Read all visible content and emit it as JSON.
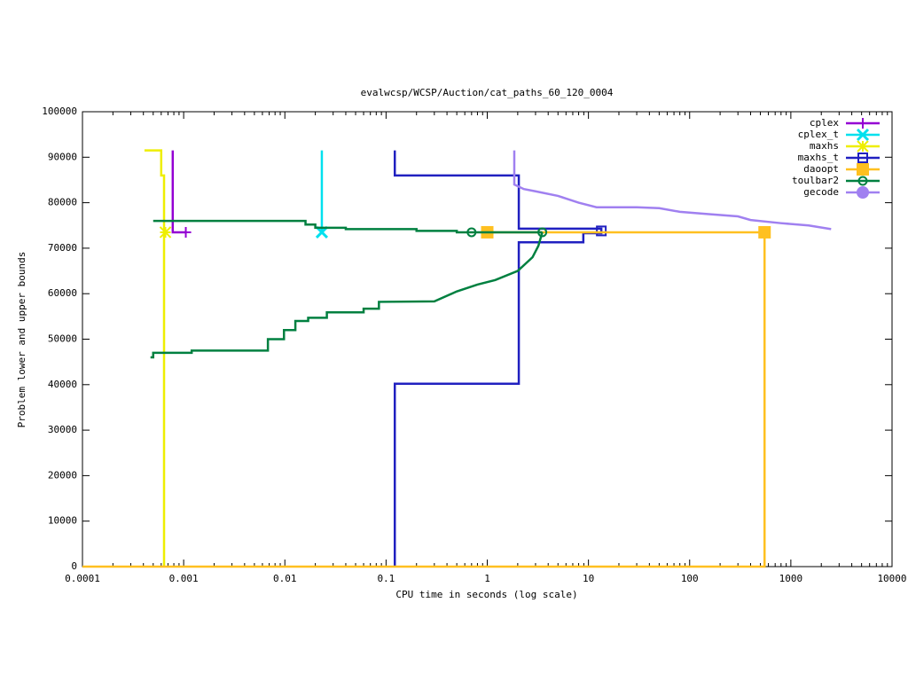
{
  "chart_data": {
    "type": "line",
    "title": "evalwcsp/WCSP/Auction/cat_paths_60_120_0004",
    "x_label": "CPU time in seconds (log scale)",
    "y_label": "Problem lower and upper bounds",
    "xscale": "log",
    "xlim": [
      0.0001,
      10000
    ],
    "xticks": [
      0.0001,
      0.001,
      0.01,
      0.1,
      1,
      10,
      100,
      1000,
      10000
    ],
    "ylim": [
      0,
      100000
    ],
    "yticks": [
      0,
      10000,
      20000,
      30000,
      40000,
      50000,
      60000,
      70000,
      80000,
      90000,
      100000
    ],
    "legend": "top-right",
    "series": [
      {
        "name": "cplex",
        "color": "#9400d3",
        "marker": "plus",
        "x": [
          0.00078,
          0.00078,
          0.00105
        ],
        "values": [
          91500,
          73500,
          73500
        ],
        "marker_x": [
          0.00105
        ],
        "marker_y": [
          73500
        ]
      },
      {
        "name": "cplex_t",
        "color": "#00e0ee",
        "marker": "cross",
        "x": [
          0.0232,
          0.0232
        ],
        "values": [
          91500,
          73500
        ],
        "marker_x": [
          0.0232
        ],
        "marker_y": [
          73500
        ]
      },
      {
        "name": "maxhs",
        "color": "#eeee00",
        "marker": "star",
        "x": [
          0.00041,
          0.0006,
          0.0006,
          0.00064,
          0.00064
        ],
        "values": [
          91500,
          91500,
          86000,
          86000,
          0
        ],
        "marker_x": [
          0.00066
        ],
        "marker_y": [
          73500
        ]
      },
      {
        "name": "maxhs_t",
        "color": "#2020c0",
        "marker": "square-open",
        "x": [
          0.122,
          0.122,
          2.05,
          2.05,
          8.9,
          8.9,
          13.4,
          13.4,
          null,
          0.122,
          0.122,
          2.05,
          2.05,
          13.4,
          13.4
        ],
        "values": [
          0,
          40200,
          40200,
          71300,
          71300,
          73300,
          73300,
          74500,
          null,
          91500,
          86000,
          86000,
          74300,
          74300,
          73500
        ],
        "marker_x": [
          13.4
        ],
        "marker_y": [
          73800
        ]
      },
      {
        "name": "daoopt",
        "color": "#ffc020",
        "marker": "square",
        "x": [
          1,
          550,
          550,
          0.0001
        ],
        "values": [
          73500,
          73500,
          0,
          0
        ],
        "marker_x": [
          1,
          550
        ],
        "marker_y": [
          73500,
          73500
        ]
      },
      {
        "name": "toulbar2",
        "color": "#008040",
        "marker": "circle-open",
        "x": [
          0.0005,
          0.016,
          0.016,
          0.02,
          0.02,
          0.04,
          0.04,
          0.2,
          0.2,
          0.5,
          0.5,
          0.7,
          3.5,
          null,
          0.00047,
          0.00047,
          0.0005,
          0.0005,
          0.0012,
          0.0012,
          0.0068,
          0.0068,
          0.0098,
          0.0098,
          0.0127,
          0.0127,
          0.017,
          0.017,
          0.026,
          0.026,
          0.06,
          0.06,
          0.085,
          0.085,
          0.3,
          0.5,
          0.8,
          1.2,
          2,
          2.8,
          3.2,
          3.5
        ],
        "values": [
          76000,
          76000,
          75200,
          75200,
          74500,
          74500,
          74200,
          74200,
          73800,
          73800,
          73500,
          73500,
          73500,
          null,
          46000,
          46000,
          46000,
          47000,
          47000,
          47500,
          47500,
          50000,
          50000,
          52000,
          52000,
          54000,
          54000,
          54700,
          54700,
          55900,
          55900,
          56700,
          56700,
          58200,
          58300,
          60500,
          62000,
          63000,
          65000,
          68000,
          70500,
          73500
        ],
        "marker_x": [
          0.7,
          3.5
        ],
        "marker_y": [
          73500,
          73500
        ]
      },
      {
        "name": "gecode",
        "color": "#a080f0",
        "marker": "circle",
        "x": [
          1.85,
          1.85,
          2.3,
          3,
          5,
          8,
          12,
          30,
          50,
          80,
          150,
          300,
          400,
          800,
          1500,
          2500
        ],
        "values": [
          91500,
          84000,
          83000,
          82500,
          81500,
          80000,
          79000,
          79000,
          78800,
          78000,
          77500,
          77000,
          76200,
          75500,
          75000,
          74200
        ],
        "marker_x": [],
        "marker_y": []
      }
    ]
  }
}
